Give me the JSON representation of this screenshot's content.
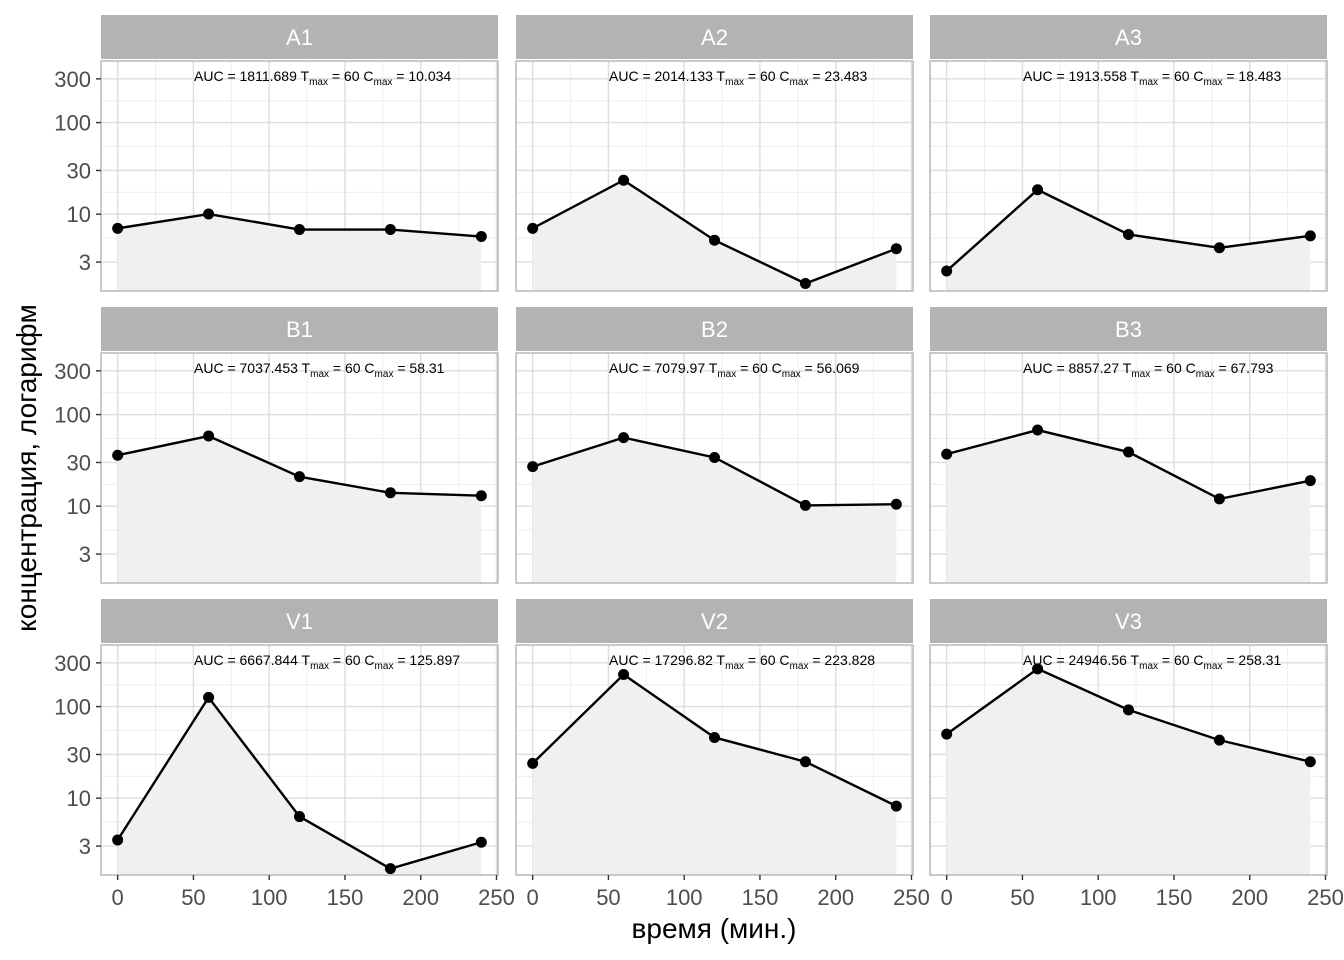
{
  "chart_data": {
    "type": "line",
    "xlabel": "время (мин.)",
    "ylabel": "концентрация, логарифм",
    "y_scale": "log10",
    "x_ticks": [
      0,
      50,
      100,
      150,
      200,
      250
    ],
    "y_ticks": [
      3,
      10,
      30,
      100,
      300
    ],
    "xlim": [
      -11,
      251
    ],
    "ylim": [
      1.45,
      470
    ],
    "grid": true,
    "area_fill": true,
    "colors": {
      "line": "#000000",
      "point": "#000000",
      "area": "#f0f0f0",
      "strip": "#b3b3b3",
      "grid_major": "#dedede",
      "grid_minor": "#eeeeee",
      "panel_border": "#b3b3b3"
    },
    "facets": [
      {
        "label": "A1",
        "x": [
          0,
          60,
          120,
          180,
          240
        ],
        "y": [
          7.0,
          10.034,
          6.8,
          6.8,
          5.7
        ],
        "auc": "1811.689",
        "tmax": "60",
        "cmax": "10.034"
      },
      {
        "label": "A2",
        "x": [
          0,
          60,
          120,
          180,
          240
        ],
        "y": [
          7.0,
          23.483,
          5.2,
          1.75,
          4.2
        ],
        "auc": "2014.133",
        "tmax": "60",
        "cmax": "23.483"
      },
      {
        "label": "A3",
        "x": [
          0,
          60,
          120,
          180,
          240
        ],
        "y": [
          2.4,
          18.483,
          6.0,
          4.3,
          5.8
        ],
        "auc": "1913.558",
        "tmax": "60",
        "cmax": "18.483"
      },
      {
        "label": "B1",
        "x": [
          0,
          60,
          120,
          180,
          240
        ],
        "y": [
          36,
          58.31,
          21,
          14,
          13
        ],
        "auc": "7037.453",
        "tmax": "60",
        "cmax": "58.31"
      },
      {
        "label": "B2",
        "x": [
          0,
          60,
          120,
          180,
          240
        ],
        "y": [
          27,
          56.069,
          34,
          10.2,
          10.5
        ],
        "auc": "7079.97",
        "tmax": "60",
        "cmax": "56.069"
      },
      {
        "label": "B3",
        "x": [
          0,
          60,
          120,
          180,
          240
        ],
        "y": [
          37,
          67.793,
          39,
          12,
          19
        ],
        "auc": "8857.27",
        "tmax": "60",
        "cmax": "67.793"
      },
      {
        "label": "V1",
        "x": [
          0,
          60,
          120,
          180,
          240
        ],
        "y": [
          3.5,
          125.897,
          6.3,
          1.7,
          3.3
        ],
        "auc": "6667.844",
        "tmax": "60",
        "cmax": "125.897"
      },
      {
        "label": "V2",
        "x": [
          0,
          60,
          120,
          180,
          240
        ],
        "y": [
          24,
          223.828,
          46,
          25,
          8.2
        ],
        "auc": "17296.82",
        "tmax": "60",
        "cmax": "223.828"
      },
      {
        "label": "V3",
        "x": [
          0,
          60,
          120,
          180,
          240
        ],
        "y": [
          50,
          258.31,
          92,
          43,
          25
        ],
        "auc": "24946.56",
        "tmax": "60",
        "cmax": "258.31"
      }
    ]
  }
}
